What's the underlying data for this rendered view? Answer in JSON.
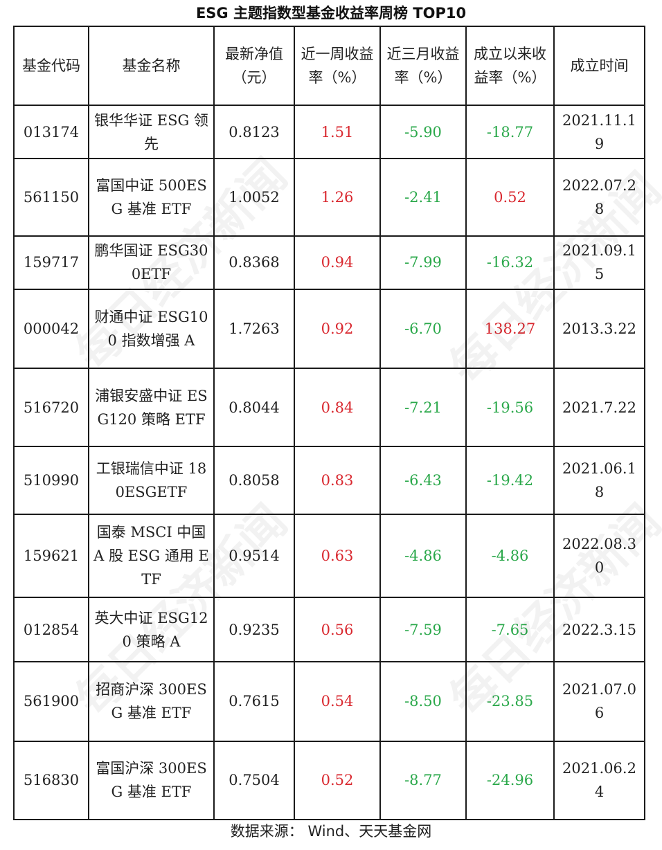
{
  "title": "ESG 主题指数型基金收益率周榜 TOP10",
  "headers": [
    "基金代码",
    "基金名称",
    "最新净值（元）",
    "近一周收益率（%）",
    "近三月收益率（%）",
    "成立以来收益率（%）",
    "成立时间"
  ],
  "rows": [
    {
      "code": "013174",
      "name": "银华华证 ESG 领先",
      "nav": "0.8123",
      "week": "1.51",
      "three_month": "-5.90",
      "since_inception": "-18.77",
      "date": "2021.11.19"
    },
    {
      "code": "561150",
      "name": "富国中证 500ESG 基准 ETF",
      "nav": "1.0052",
      "week": "1.26",
      "three_month": "-2.41",
      "since_inception": "0.52",
      "date": "2022.07.28"
    },
    {
      "code": "159717",
      "name": "鹏华国证 ESG300ETF",
      "nav": "0.8368",
      "week": "0.94",
      "three_month": "-7.99",
      "since_inception": "-16.32",
      "date": "2021.09.15"
    },
    {
      "code": "000042",
      "name": "财通中证 ESG100 指数增强 A",
      "nav": "1.7263",
      "week": "0.92",
      "three_month": "-6.70",
      "since_inception": "138.27",
      "date": "2013.3.22"
    },
    {
      "code": "516720",
      "name": "浦银安盛中证 ESG120 策略 ETF",
      "nav": "0.8044",
      "week": "0.84",
      "three_month": "-7.21",
      "since_inception": "-19.56",
      "date": "2021.7.22"
    },
    {
      "code": "510990",
      "name": "工银瑞信中证 180ESGETF",
      "nav": "0.8058",
      "week": "0.83",
      "three_month": "-6.43",
      "since_inception": "-19.42",
      "date": "2021.06.18"
    },
    {
      "code": "159621",
      "name": "国泰 MSCI 中国 A 股 ESG 通用 ETF",
      "nav": "0.9514",
      "week": "0.63",
      "three_month": "-4.86",
      "since_inception": "-4.86",
      "date": "2022.08.30"
    },
    {
      "code": "012854",
      "name": "英大中证 ESG120 策略 A",
      "nav": "0.9235",
      "week": "0.56",
      "three_month": "-7.59",
      "since_inception": "-7.65",
      "date": "2022.3.15"
    },
    {
      "code": "561900",
      "name": "招商沪深 300ESG 基准 ETF",
      "nav": "0.7615",
      "week": "0.54",
      "three_month": "-8.50",
      "since_inception": "-23.85",
      "date": "2021.07.06"
    },
    {
      "code": "516830",
      "name": "富国沪深 300ESG 基准 ETF",
      "nav": "0.7504",
      "week": "0.52",
      "three_month": "-8.77",
      "since_inception": "-24.96",
      "date": "2021.06.24"
    }
  ],
  "source": "数据来源：  Wind、天天基金网",
  "watermark": "每日经济新闻",
  "colors": {
    "positive": "#d9282f",
    "negative": "#2aa84a"
  }
}
